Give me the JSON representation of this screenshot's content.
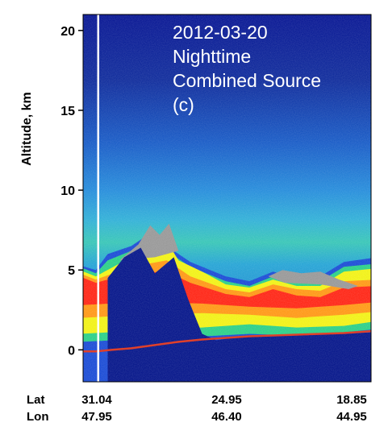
{
  "chart_data": {
    "type": "heatmap",
    "title": "",
    "annotation_lines": [
      "2012-03-20",
      "Nighttime",
      "Combined Source",
      "(c)"
    ],
    "ylabel": "Altitude, km",
    "ylim": [
      -2,
      21
    ],
    "yticks": [
      0,
      5,
      10,
      15,
      20
    ],
    "x_rows": [
      {
        "label": "Lat",
        "values": [
          "31.04",
          "24.95",
          "18.85"
        ]
      },
      {
        "label": "Lon",
        "values": [
          "47.95",
          "46.40",
          "44.95"
        ]
      }
    ],
    "vertical_marker": {
      "lat": 30.4,
      "color": "#ffffff"
    },
    "surface_line_color": "#e0402a",
    "colormap": [
      "#0a1a8c",
      "#1f4fd6",
      "#29a3e0",
      "#2fd08a",
      "#f2f21a",
      "#ff9a1a",
      "#ff2a1a",
      "#9a9a9a",
      "#ffffff"
    ],
    "grid": false
  }
}
